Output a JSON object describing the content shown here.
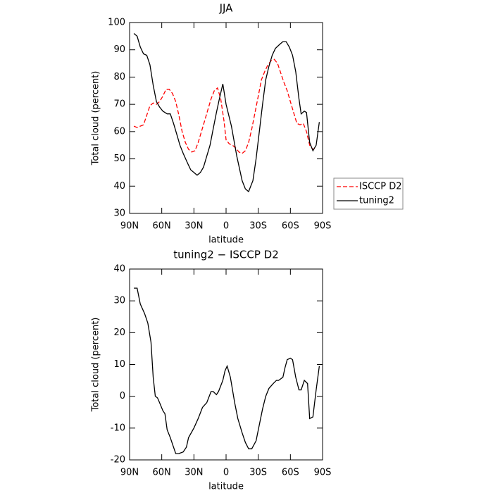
{
  "chart_data": [
    {
      "type": "line",
      "title": "JJA",
      "xlabel": "latitude",
      "ylabel": "Total cloud (percent)",
      "xlim": [
        90,
        -90
      ],
      "ylim": [
        30,
        100
      ],
      "xticks": [
        {
          "value": 90,
          "label": "90N"
        },
        {
          "value": 60,
          "label": "60N"
        },
        {
          "value": 30,
          "label": "30N"
        },
        0,
        {
          "value": -30,
          "label": "30S"
        },
        {
          "value": -60,
          "label": "60S"
        },
        {
          "value": -90,
          "label": "90S"
        }
      ],
      "yticks": [
        30,
        40,
        50,
        60,
        70,
        80,
        90,
        100
      ],
      "legend": "right",
      "series": [
        {
          "name": "ISCCP D2",
          "color": "#ff0000",
          "dash": true,
          "x": [
            86,
            83,
            80,
            77,
            74,
            71,
            68,
            65,
            62,
            59,
            56,
            53,
            50,
            47,
            44,
            41,
            38,
            35,
            32,
            29,
            26,
            23,
            20,
            17,
            14,
            11,
            8,
            5,
            2,
            0,
            -3,
            -6,
            -9,
            -12,
            -15,
            -18,
            -21,
            -24,
            -27,
            -30,
            -33,
            -36,
            -39,
            -42,
            -45,
            -48,
            -51,
            -54,
            -57,
            -60,
            -63,
            -66,
            -69,
            -72,
            -75,
            -78,
            -81,
            -84
          ],
          "values": [
            62,
            61.5,
            62,
            62.5,
            66,
            69.5,
            70.5,
            70,
            71,
            73,
            75.5,
            75.5,
            74,
            71,
            66,
            60,
            56,
            53.5,
            52.5,
            53,
            56,
            60,
            64,
            68,
            72,
            75,
            76,
            72,
            64,
            57,
            55.5,
            55,
            54,
            52.5,
            52,
            53,
            56,
            61,
            67,
            73,
            79,
            82,
            84.5,
            86,
            86.5,
            85,
            81.5,
            78,
            75,
            71,
            67,
            63,
            62.5,
            63,
            60,
            55,
            53.5,
            54
          ]
        },
        {
          "name": "tuning2",
          "color": "#000000",
          "dash": false,
          "x": [
            86,
            83,
            80,
            77,
            74,
            71,
            68,
            65,
            62,
            59,
            55,
            52,
            49,
            46,
            43,
            40,
            36,
            33,
            30,
            27,
            24,
            21,
            18,
            15,
            12,
            9,
            6,
            3,
            0,
            -5,
            -10,
            -15,
            -18,
            -21,
            -25,
            -28,
            -31,
            -34,
            -37,
            -40,
            -43,
            -46,
            -50,
            -53,
            -56,
            -59,
            -62,
            -65,
            -68,
            -70,
            -73,
            -75,
            -78,
            -81,
            -84,
            -87
          ],
          "values": [
            96,
            95,
            91,
            88.5,
            88,
            84.5,
            77,
            71,
            69,
            67.5,
            66.5,
            66.5,
            63,
            59,
            55,
            52,
            48.5,
            46,
            45,
            44,
            45,
            47,
            51,
            55,
            61,
            67,
            72.5,
            77.5,
            70,
            62,
            51,
            42,
            39,
            38,
            42,
            50,
            60,
            70,
            79,
            84,
            88,
            90.5,
            92,
            93,
            93,
            91,
            88,
            82,
            72,
            66.5,
            67.5,
            67,
            56,
            53,
            55,
            63.5
          ]
        }
      ]
    },
    {
      "type": "line",
      "title": "tuning2 − ISCCP D2",
      "xlabel": "latitude",
      "ylabel": "Total cloud (percent)",
      "xlim": [
        90,
        -90
      ],
      "ylim": [
        -20,
        40
      ],
      "xticks": [
        {
          "value": 90,
          "label": "90N"
        },
        {
          "value": 60,
          "label": "60N"
        },
        {
          "value": 30,
          "label": "30N"
        },
        0,
        {
          "value": -30,
          "label": "30S"
        },
        {
          "value": -60,
          "label": "60S"
        },
        {
          "value": -90,
          "label": "90S"
        }
      ],
      "yticks": [
        -20,
        -10,
        0,
        10,
        20,
        30,
        40
      ],
      "color": "#000000",
      "x": [
        86,
        83,
        80,
        76,
        73,
        70,
        68,
        66,
        64,
        62,
        59,
        57,
        55,
        52,
        49,
        47,
        44,
        40,
        37,
        35,
        30,
        26,
        22,
        18,
        14,
        12,
        9,
        7,
        3,
        1,
        -1,
        -4,
        -8,
        -11,
        -15,
        -18,
        -21,
        -24,
        -28,
        -31,
        -34,
        -37,
        -40,
        -44,
        -47,
        -49,
        -53,
        -55,
        -57,
        -60,
        -62,
        -65,
        -68,
        -70,
        -73,
        -76,
        -78,
        -81,
        -84,
        -87
      ],
      "values": [
        34,
        34,
        29,
        26,
        23,
        17,
        6,
        0,
        -0.5,
        -2,
        -4.5,
        -5.5,
        -10.5,
        -13,
        -16,
        -18,
        -18,
        -17.5,
        -16,
        -13,
        -10,
        -7,
        -3.5,
        -2,
        1.5,
        1.5,
        0.5,
        1.5,
        5,
        8,
        9.5,
        6,
        -2,
        -7,
        -11.5,
        -14.5,
        -16.5,
        -16.5,
        -14,
        -9,
        -4,
        0,
        2.5,
        4,
        5,
        5,
        6,
        9,
        11.5,
        12,
        11.5,
        6,
        2,
        2,
        5,
        4,
        -7,
        -6.5,
        2,
        9.5
      ]
    }
  ]
}
